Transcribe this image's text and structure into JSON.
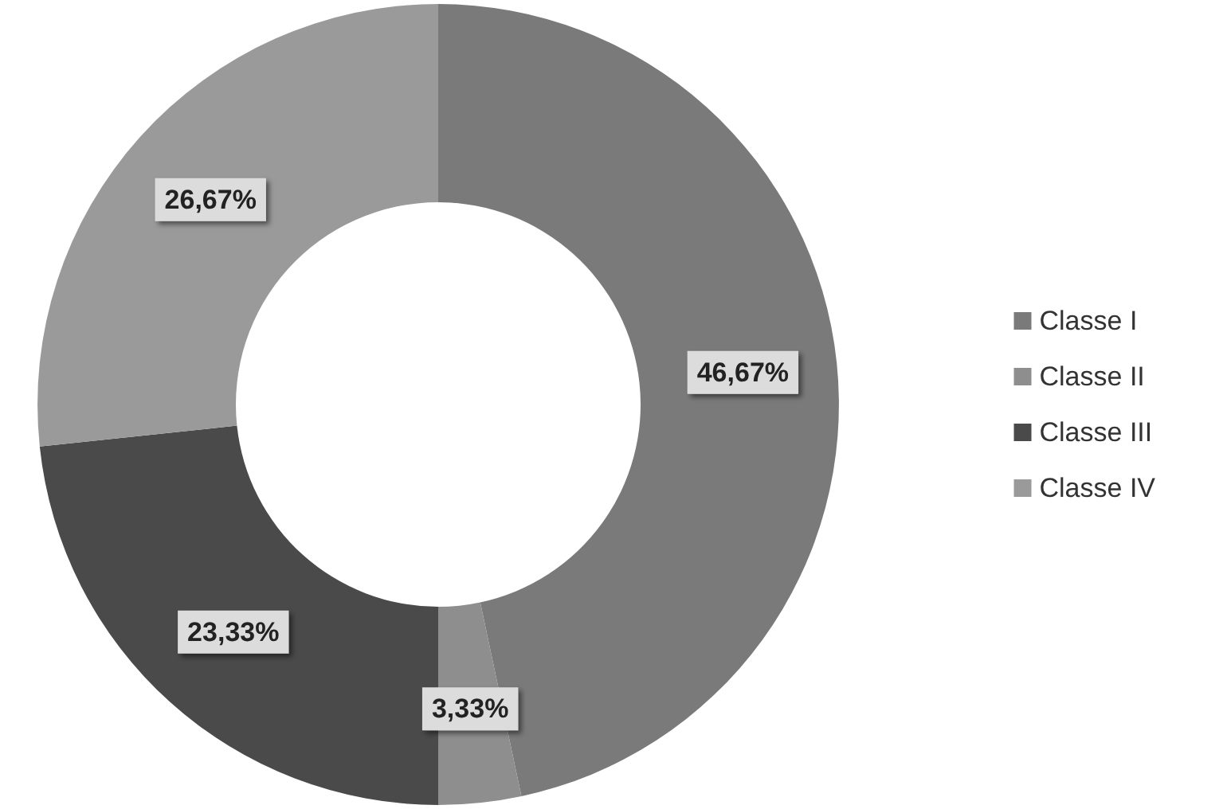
{
  "chart_data": {
    "type": "donut",
    "categories": [
      "Classe I",
      "Classe II",
      "Classe III",
      "Classe IV"
    ],
    "values": [
      46.67,
      3.33,
      23.33,
      26.67
    ],
    "value_labels": [
      "46,67%",
      "3,33%",
      "23,33%",
      "26,67%"
    ],
    "colors": [
      "#7a7a7a",
      "#8e8e8e",
      "#4a4a4a",
      "#9a9a9a"
    ],
    "legend": "right"
  }
}
